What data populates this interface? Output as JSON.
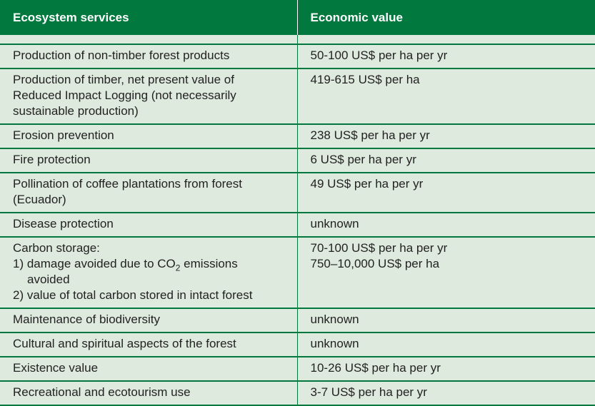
{
  "header": {
    "col1": "Ecosystem services",
    "col2": "Economic value"
  },
  "rows": [
    {
      "service": "Production of non-timber forest products",
      "value": "50-100 US$ per ha per yr"
    },
    {
      "service_lines": [
        "Production of timber, net present value of",
        "Reduced Impact Logging (not necessarily",
        "sustainable production)"
      ],
      "value": "419-615 US$ per ha"
    },
    {
      "service": "Erosion prevention",
      "value": "238 US$ per ha per yr"
    },
    {
      "service": "Fire protection",
      "value": "6 US$ per ha per yr"
    },
    {
      "service_lines": [
        "Pollination of coffee plantations from forest",
        "(Ecuador)"
      ],
      "value": "49 US$ per ha per yr"
    },
    {
      "service": "Disease protection",
      "value": "unknown"
    },
    {
      "carbon": {
        "title": "Carbon storage:",
        "item1_pre": "1) damage avoided due to CO",
        "item1_sub": "2",
        "item1_post": " emissions",
        "item1_cont": "avoided",
        "item2": "2) value of total carbon stored in intact forest"
      },
      "value_lines": [
        "70-100 US$ per ha per yr",
        "750–10,000 US$ per ha"
      ]
    },
    {
      "service": "Maintenance of biodiversity",
      "value": "unknown"
    },
    {
      "service": "Cultural and spiritual aspects of the forest",
      "value": "unknown"
    },
    {
      "service": "Existence value",
      "value": "10-26 US$ per ha per yr"
    },
    {
      "service": "Recreational and ecotourism use",
      "value": "3-7 US$ per ha per yr"
    }
  ]
}
